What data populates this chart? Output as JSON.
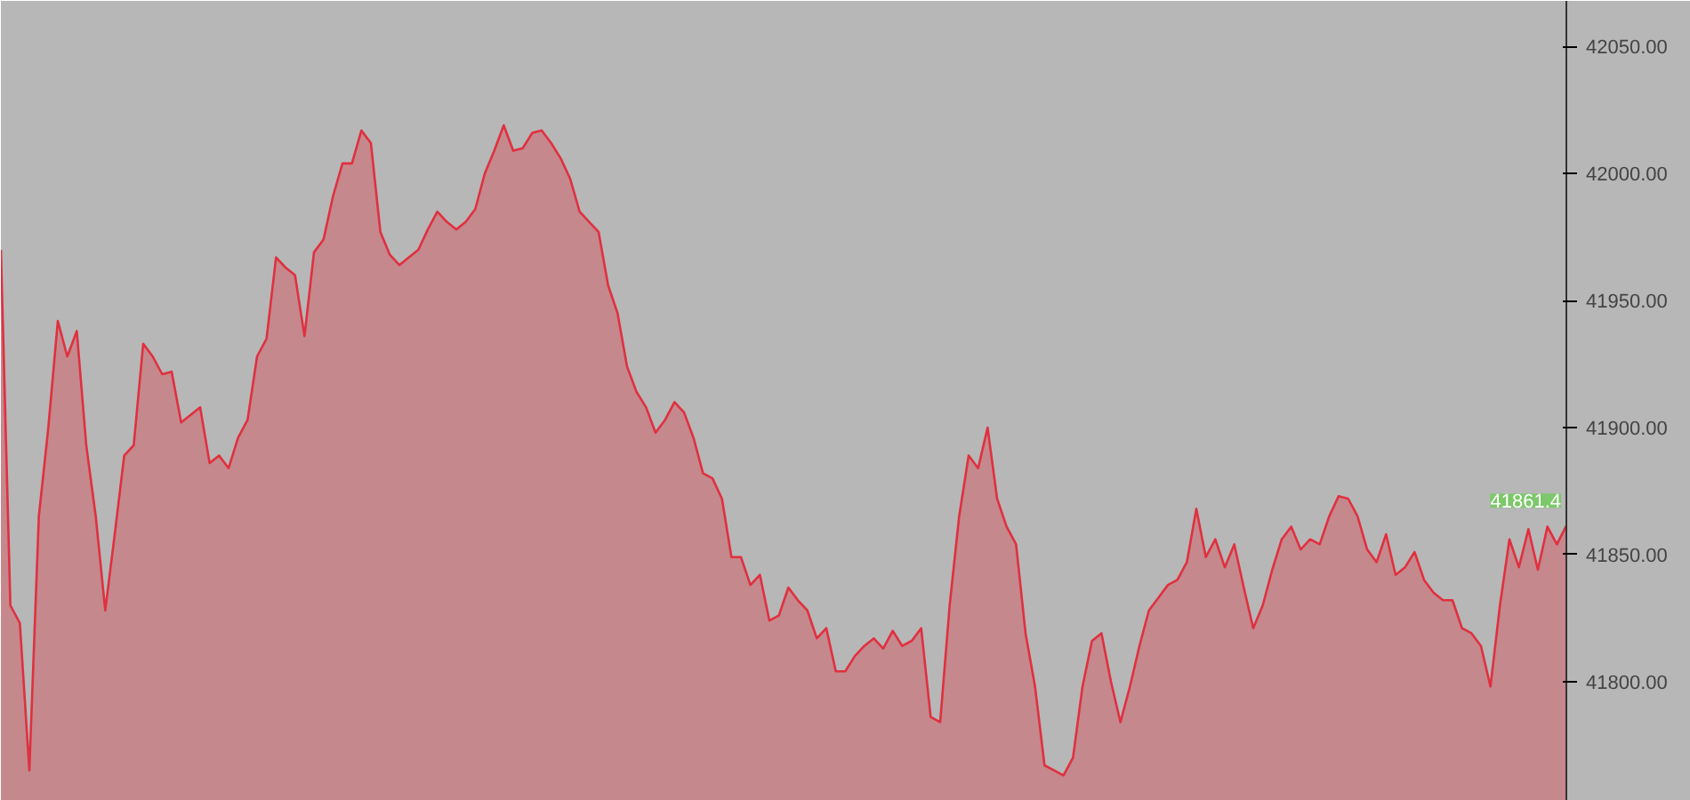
{
  "chart_data": {
    "type": "area",
    "categories": [
      null,
      null,
      null,
      null,
      null,
      null,
      null,
      null,
      null,
      null,
      null,
      null,
      null,
      null,
      null,
      null,
      null,
      null,
      null,
      null,
      null,
      null,
      null,
      null,
      null,
      null,
      null,
      null,
      null,
      null,
      null,
      null,
      null,
      null,
      null,
      null,
      null,
      null,
      null,
      null,
      null,
      null,
      null,
      null,
      null,
      null,
      null,
      null,
      null,
      null,
      null,
      null,
      null,
      null,
      null,
      null,
      null,
      null,
      null,
      null,
      null,
      null,
      null,
      null,
      null,
      null,
      null,
      null,
      null,
      null,
      null,
      null,
      null,
      null,
      null,
      null,
      null,
      null,
      null,
      null,
      null,
      null,
      null,
      null,
      null,
      null,
      null,
      null,
      null,
      null,
      null,
      null,
      null,
      null,
      null,
      null,
      null,
      null,
      null,
      null,
      null,
      null,
      null,
      null,
      null,
      null,
      null,
      null,
      null,
      null,
      null,
      null,
      null,
      null,
      null,
      null,
      null,
      null,
      null,
      null,
      null,
      null,
      null,
      null,
      null,
      null,
      null,
      null,
      null,
      null,
      null,
      null,
      null,
      null,
      null,
      null,
      null,
      null,
      null,
      null,
      null,
      null,
      null,
      null,
      null,
      null,
      null,
      null,
      null,
      null,
      null,
      null,
      null,
      null,
      null,
      null,
      null,
      null,
      null,
      null,
      null,
      null,
      null,
      null,
      null,
      null
    ],
    "series": [
      {
        "color": "#e0303f",
        "values": [
          41970,
          41830,
          41823,
          41765,
          41865,
          41900,
          41942,
          41928,
          41938,
          41893,
          41865,
          41828,
          41858,
          41889,
          41893,
          41933,
          41928,
          41921,
          41922,
          41902,
          41905,
          41908,
          41886,
          41889,
          41884,
          41896,
          41903,
          41928,
          41935,
          41967,
          41963,
          41960,
          41936,
          41969,
          41974,
          41991,
          42004,
          42004,
          42017,
          42012,
          41977,
          41968,
          41964,
          41967,
          41970,
          41978,
          41985,
          41981,
          41978,
          41981,
          41986,
          42000,
          42009,
          42019,
          42009,
          42010,
          42016,
          42017,
          42012,
          42006,
          41998,
          41985,
          41981,
          41977,
          41956,
          41945,
          41924,
          41914,
          41908,
          41898,
          41903,
          41910,
          41906,
          41896,
          41882,
          41880,
          41872,
          41849,
          41849,
          41838,
          41842,
          41824,
          41826,
          41837,
          41832,
          41828,
          41817,
          41821,
          41804,
          41804,
          41810,
          41814,
          41817,
          41813,
          41820,
          41814,
          41816,
          41821,
          41786,
          41784,
          41830,
          41865,
          41889,
          41884,
          41900,
          41872,
          41861,
          41854,
          41819,
          41798,
          41767,
          41765,
          41763,
          41770,
          41798,
          41816,
          41819,
          41800,
          41784,
          41798,
          41814,
          41828,
          41833,
          41838,
          41840,
          41847,
          41868,
          41849,
          41856,
          41845,
          41854,
          41837,
          41821,
          41830,
          41844,
          41856,
          41861,
          41852,
          41856,
          41854,
          41865,
          41873,
          41872,
          41865,
          41852,
          41847,
          41858,
          41842,
          41845,
          41851,
          41840,
          41835,
          41832,
          41832,
          41821,
          41819,
          41814,
          41798,
          41830,
          41856,
          41845,
          41860,
          41844,
          41861,
          41854,
          41861.4
        ]
      }
    ],
    "ylim": [
      41753,
      42068
    ],
    "yticks": [
      {
        "value": 41800,
        "label": "41800.00"
      },
      {
        "value": 41850,
        "label": "41850.00"
      },
      {
        "value": 41900,
        "label": "41900.00"
      },
      {
        "value": 41950,
        "label": "41950.00"
      },
      {
        "value": 42000,
        "label": "42000.00"
      },
      {
        "value": 42050,
        "label": "42050.00"
      }
    ],
    "tick_labels": "y",
    "grid": false,
    "annotations": [
      {
        "text": "41861.4",
        "y": 41861.4
      }
    ]
  }
}
